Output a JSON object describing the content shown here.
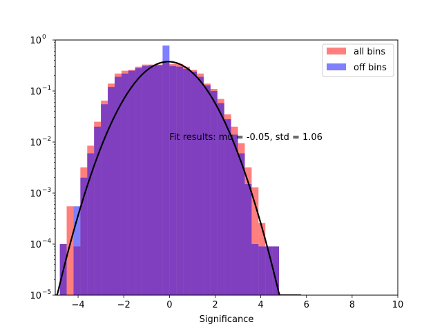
{
  "chart_data": {
    "type": "histogram",
    "xlabel": "Significance",
    "xlim": [
      -5,
      10
    ],
    "ylim": [
      1e-05,
      1
    ],
    "yscale": "log",
    "xticks": [
      "−4",
      "−2",
      "0",
      "2",
      "4",
      "6",
      "8",
      "10"
    ],
    "xtick_values": [
      -4,
      -2,
      0,
      2,
      4,
      6,
      8,
      10
    ],
    "yticks": [
      {
        "base": "10",
        "exp": "−5",
        "value": 1e-05
      },
      {
        "base": "10",
        "exp": "−4",
        "value": 0.0001
      },
      {
        "base": "10",
        "exp": "−3",
        "value": 0.001
      },
      {
        "base": "10",
        "exp": "−2",
        "value": 0.01
      },
      {
        "base": "10",
        "exp": "−1",
        "value": 0.1
      },
      {
        "base": "10",
        "exp": "0",
        "value": 1
      }
    ],
    "bin_edges": [
      -4.8,
      -4.5,
      -4.2,
      -3.9,
      -3.6,
      -3.3,
      -3.0,
      -2.7,
      -2.4,
      -2.1,
      -1.8,
      -1.5,
      -1.2,
      -0.9,
      -0.6,
      -0.3,
      0.0,
      0.3,
      0.6,
      0.9,
      1.2,
      1.5,
      1.8,
      2.1,
      2.4,
      2.7,
      3.0,
      3.3,
      3.6,
      3.9,
      4.2,
      4.5,
      4.8
    ],
    "series": [
      {
        "name": "all bins",
        "color": "#ff0000",
        "opacity": 0.5,
        "values": [
          0.0001,
          0.00055,
          9e-05,
          0.0032,
          0.0085,
          0.025,
          0.065,
          0.14,
          0.22,
          0.25,
          0.26,
          0.3,
          0.33,
          0.33,
          0.33,
          0.36,
          0.34,
          0.34,
          0.3,
          0.26,
          0.22,
          0.14,
          0.11,
          0.07,
          0.035,
          0.02,
          0.0095,
          0.0032,
          0.0013,
          0.00026,
          9e-05,
          9e-05
        ]
      },
      {
        "name": "off bins",
        "color": "#0000ff",
        "opacity": 0.5,
        "values": [
          0.0001,
          1e-05,
          0.00055,
          0.002,
          0.006,
          0.02,
          0.055,
          0.12,
          0.19,
          0.22,
          0.25,
          0.28,
          0.31,
          0.32,
          0.32,
          0.78,
          0.31,
          0.3,
          0.27,
          0.24,
          0.19,
          0.13,
          0.1,
          0.058,
          0.028,
          0.014,
          0.006,
          0.0015,
          0.0001,
          9e-05,
          9e-05,
          9e-05
        ]
      }
    ],
    "fit": {
      "mu": -0.05,
      "std": 1.06,
      "color": "#000000"
    },
    "annotation": {
      "text": "Fit results: mu = -0.05, std = 1.06",
      "x": 0.0,
      "y": 0.011
    },
    "legend": {
      "placement": "top-right"
    }
  }
}
